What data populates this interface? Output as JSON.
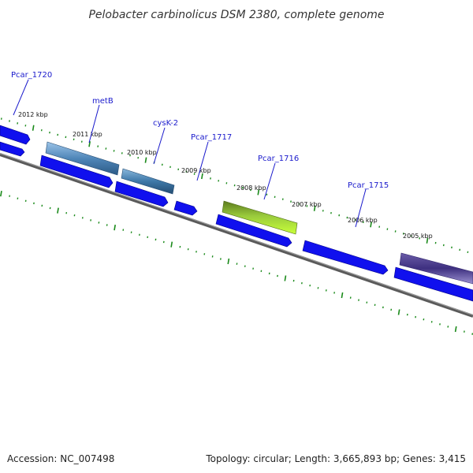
{
  "title": "Pelobacter carbinolicus DSM 2380, complete genome",
  "footer": {
    "accession": "Accession: NC_007498",
    "summary": "Topology: circular; Length: 3,665,893 bp; Genes: 3,415"
  },
  "colors": {
    "cds_forward": "#1010ee",
    "backbone": "#7a7a7a",
    "tick": "#1a8a1a",
    "gene_label": "#1a1acc",
    "metB": "#4f86b8",
    "cysK-2": "#3e78a8",
    "Pcar_1716": "#8fc43a",
    "dark_gene": "#4a3c88"
  },
  "kbp_labels": [
    "2012 kbp",
    "2011 kbp",
    "2010 kbp",
    "2009 kbp",
    "2008 kbp",
    "2007 kbp",
    "2006 kbp",
    "2005 kbp"
  ],
  "genes": [
    {
      "name": "Pcar_1720"
    },
    {
      "name": "metB"
    },
    {
      "name": "cysK-2"
    },
    {
      "name": "Pcar_1717"
    },
    {
      "name": "Pcar_1716"
    },
    {
      "name": "Pcar_1715"
    }
  ]
}
